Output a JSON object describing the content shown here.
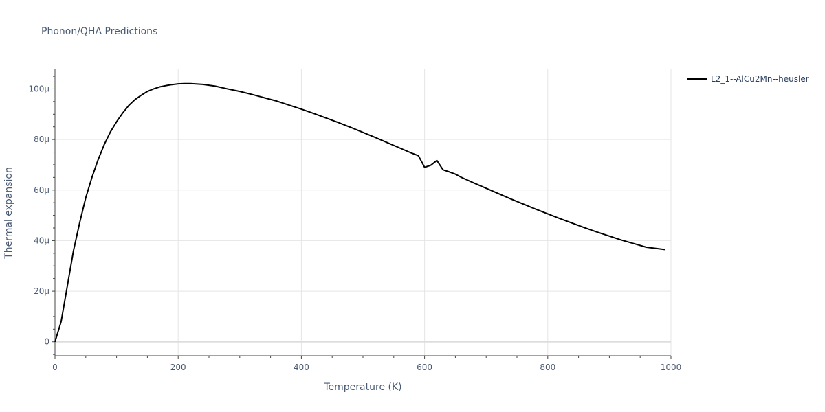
{
  "chart_data": {
    "type": "line",
    "title": "Phonon/QHA Predictions",
    "xlabel": "Temperature (K)",
    "ylabel": "Thermal expansion",
    "xlim": [
      0,
      1000
    ],
    "ylim": [
      -5.5,
      108
    ],
    "x_ticks": [
      0,
      200,
      400,
      600,
      800,
      1000
    ],
    "x_tick_labels": [
      "0",
      "200",
      "400",
      "600",
      "800",
      "1000"
    ],
    "y_ticks": [
      0,
      20,
      40,
      60,
      80,
      100
    ],
    "y_tick_labels": [
      "0",
      "20µ",
      "40µ",
      "60µ",
      "80µ",
      "100µ"
    ],
    "grid": true,
    "legend_position": "top-right",
    "colors": {
      "line": "#000000",
      "grid": "#e5e5e5",
      "zeroline": "#dddddd",
      "axis": "#444444",
      "text": "#4a5a73"
    },
    "series": [
      {
        "name": "L2_1--AlCu2Mn--heusler",
        "x": [
          0,
          10,
          20,
          30,
          40,
          50,
          60,
          70,
          80,
          90,
          100,
          110,
          120,
          130,
          140,
          150,
          160,
          170,
          180,
          190,
          200,
          210,
          220,
          240,
          260,
          280,
          300,
          320,
          340,
          360,
          380,
          400,
          420,
          440,
          460,
          480,
          500,
          520,
          540,
          560,
          580,
          590,
          600,
          610,
          620,
          630,
          640,
          650,
          660,
          680,
          700,
          720,
          740,
          760,
          780,
          800,
          820,
          840,
          860,
          880,
          900,
          920,
          940,
          960,
          990
        ],
        "y": [
          0,
          8,
          22,
          36,
          47,
          57,
          65,
          72,
          78,
          83,
          87,
          90.5,
          93.5,
          95.8,
          97.5,
          99,
          100,
          100.8,
          101.3,
          101.7,
          102,
          102.1,
          102.1,
          101.8,
          101.1,
          100,
          99,
          97.8,
          96.5,
          95.2,
          93.6,
          92,
          90.3,
          88.5,
          86.7,
          84.8,
          82.8,
          80.8,
          78.7,
          76.6,
          74.5,
          73.6,
          69,
          69.8,
          71.7,
          68,
          67.2,
          66.3,
          65,
          62.8,
          60.7,
          58.6,
          56.5,
          54.5,
          52.5,
          50.6,
          48.7,
          46.9,
          45.1,
          43.4,
          41.8,
          40.2,
          38.8,
          37.4,
          36.5
        ]
      }
    ]
  }
}
